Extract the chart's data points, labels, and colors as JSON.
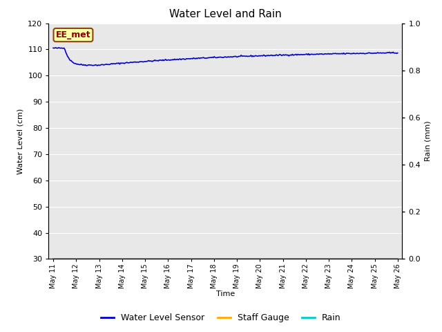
{
  "title": "Water Level and Rain",
  "xlabel": "Time",
  "ylabel_left": "Water Level (cm)",
  "ylabel_right": "Rain (mm)",
  "ylim_left": [
    30,
    120
  ],
  "ylim_right": [
    0.0,
    1.0
  ],
  "annotation_text": "EE_met",
  "bg_color": "#e8e8e8",
  "fig_bg": "#ffffff",
  "legend_entries": [
    "Water Level Sensor",
    "Staff Gauge",
    "Rain"
  ],
  "legend_colors": [
    "#0000cc",
    "#ffaa00",
    "#00cccc"
  ],
  "water_level_color": "#0000cc",
  "staff_gauge_color": "#ffaa00",
  "rain_color": "#00cccc",
  "x_tick_labels": [
    "May 11",
    "May 12",
    "May 13",
    "May 14",
    "May 15",
    "May 16",
    "May 17",
    "May 18",
    "May 19",
    "May 20",
    "May 21",
    "May 22",
    "May 23",
    "May 24",
    "May 25",
    "May 26"
  ],
  "yticks_left": [
    30,
    40,
    50,
    60,
    70,
    80,
    90,
    100,
    110,
    120
  ],
  "yticks_right": [
    0.0,
    0.2,
    0.4,
    0.6,
    0.8,
    1.0
  ]
}
